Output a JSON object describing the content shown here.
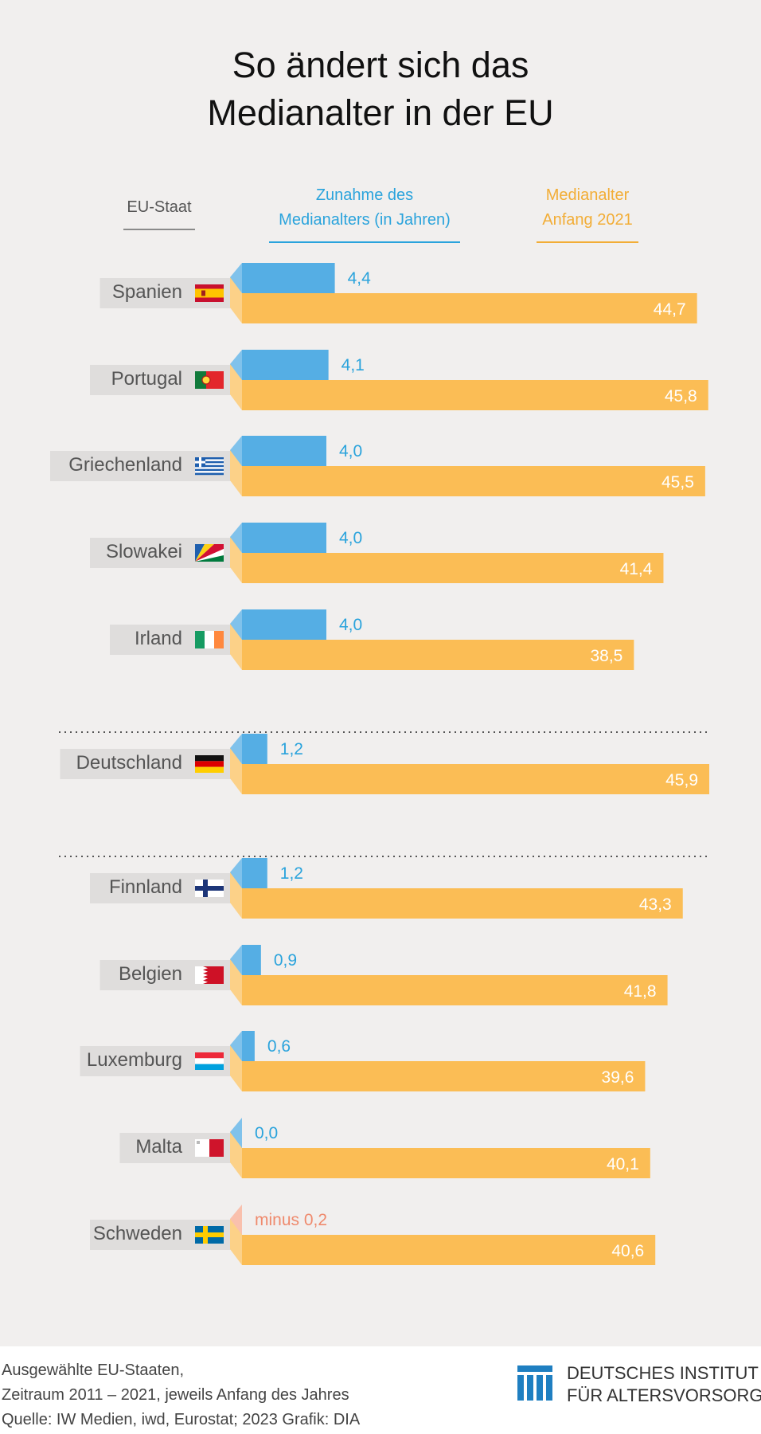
{
  "title_lines": [
    "So ändert sich das",
    "Medianalter in der EU"
  ],
  "headers": {
    "country": "EU-Staat",
    "increase": "Zunahme des\nMedianalters (in Jahren)",
    "median": "Medianalter\nAnfang 2021"
  },
  "colors": {
    "increase": "#55aee4",
    "increase_label": "#2aa3dc",
    "median": "#fbbd55",
    "median_label": "#ffffff",
    "negative": "#f7ab92",
    "negative_label": "#ef8a6d",
    "country_bg": "#dfdddc",
    "country_text": "#555555"
  },
  "chart_data": {
    "type": "bar",
    "series": [
      {
        "name": "Zunahme des Medianalters (in Jahren)",
        "values": [
          4.4,
          4.1,
          4.0,
          4.0,
          4.0,
          1.2,
          1.2,
          0.9,
          0.6,
          0.0,
          -0.2
        ]
      },
      {
        "name": "Medianalter Anfang 2021",
        "values": [
          44.7,
          45.8,
          45.5,
          41.4,
          38.5,
          45.9,
          43.3,
          41.8,
          39.6,
          40.1,
          40.6
        ]
      }
    ],
    "rows": [
      {
        "country": "Spanien",
        "flag": "spain-flag",
        "increase": 4.4,
        "increase_label": "4,4",
        "median": 44.7,
        "median_label": "44,7"
      },
      {
        "country": "Portugal",
        "flag": "portugal-flag",
        "increase": 4.1,
        "increase_label": "4,1",
        "median": 45.8,
        "median_label": "45,8"
      },
      {
        "country": "Griechenland",
        "flag": "greece-flag",
        "increase": 4.0,
        "increase_label": "4,0",
        "median": 45.5,
        "median_label": "45,5"
      },
      {
        "country": "Slowakei",
        "flag": "slovakia-flag",
        "increase": 4.0,
        "increase_label": "4,0",
        "median": 41.4,
        "median_label": "41,4"
      },
      {
        "country": "Irland",
        "flag": "ireland-flag",
        "increase": 4.0,
        "increase_label": "4,0",
        "median": 38.5,
        "median_label": "38,5"
      },
      {
        "country": "Deutschland",
        "flag": "germany-flag",
        "increase": 1.2,
        "increase_label": "1,2",
        "median": 45.9,
        "median_label": "45,9"
      },
      {
        "country": "Finnland",
        "flag": "finland-flag",
        "increase": 1.2,
        "increase_label": "1,2",
        "median": 43.3,
        "median_label": "43,3"
      },
      {
        "country": "Belgien",
        "flag": "bahrain-flag",
        "increase": 0.9,
        "increase_label": "0,9",
        "median": 41.8,
        "median_label": "41,8"
      },
      {
        "country": "Luxemburg",
        "flag": "luxembourg-flag",
        "increase": 0.6,
        "increase_label": "0,6",
        "median": 39.6,
        "median_label": "39,6"
      },
      {
        "country": "Malta",
        "flag": "malta-flag",
        "increase": 0.0,
        "increase_label": "0,0",
        "median": 40.1,
        "median_label": "40,1"
      },
      {
        "country": "Schweden",
        "flag": "sweden-flag",
        "increase": -0.2,
        "increase_label": "minus 0,2",
        "median": 40.6,
        "median_label": "40,6"
      }
    ],
    "groups": [
      [
        0,
        4
      ],
      [
        5,
        5
      ],
      [
        6,
        10
      ]
    ],
    "legend_position": "top",
    "grid": false
  },
  "footer": {
    "note_lines": [
      "Ausgewählte EU-Staaten,",
      "Zeitraum 2011 – 2021, jeweils Anfang des Jahres",
      "Quelle: IW Medien, iwd, Eurostat; 2023  Grafik: DIA"
    ],
    "logo_lines": [
      "DEUTSCHES INSTITUT",
      "FÜR ALTERSVORSORGE"
    ],
    "logo_icon": "dia-logo-icon"
  }
}
